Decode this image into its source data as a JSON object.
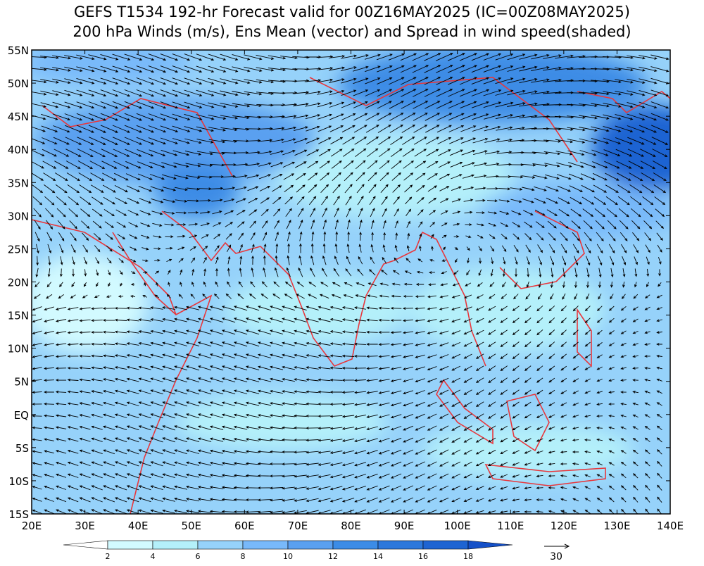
{
  "header": {
    "title": "GEFS T1534 192-hr Forecast valid for 00Z16MAY2025 (IC=00Z08MAY2025)",
    "subtitle": "200 hPa Winds (m/s), Ens Mean (vector) and Spread in wind speed(shaded)"
  },
  "axes": {
    "lat_labels": [
      "55N",
      "50N",
      "45N",
      "40N",
      "35N",
      "30N",
      "25N",
      "20N",
      "15N",
      "10N",
      "5N",
      "EQ",
      "5S",
      "10S",
      "15S"
    ],
    "lon_labels": [
      "20E",
      "30E",
      "40E",
      "50E",
      "60E",
      "70E",
      "80E",
      "90E",
      "100E",
      "110E",
      "120E",
      "130E",
      "140E"
    ]
  },
  "colorbar": {
    "labels": [
      2,
      4,
      6,
      8,
      10,
      12,
      14,
      16,
      18
    ]
  },
  "reference_vector": {
    "label": 30
  }
}
